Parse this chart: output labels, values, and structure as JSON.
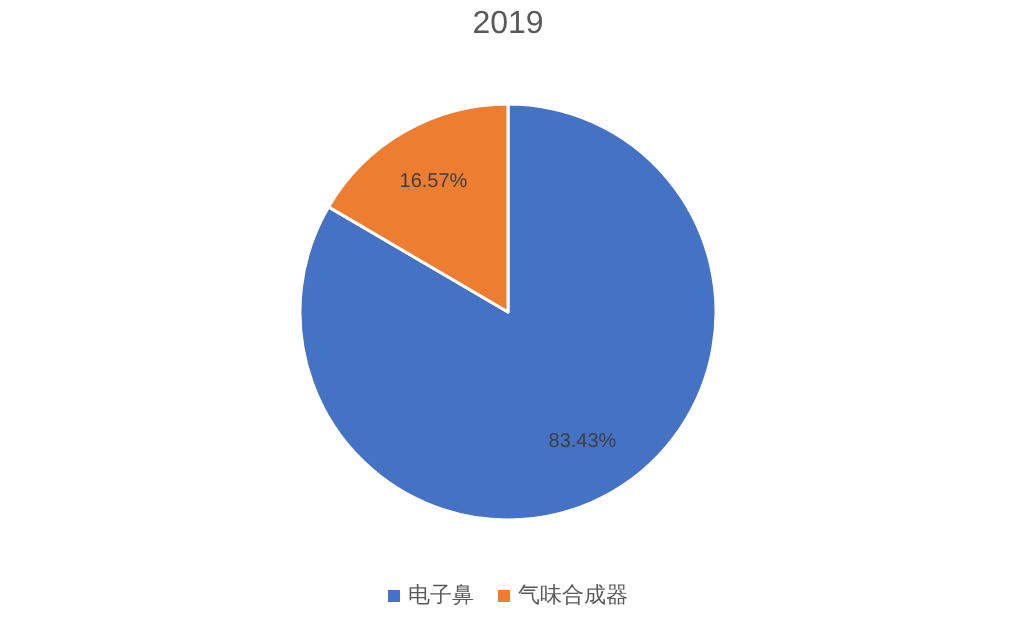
{
  "chart_data": {
    "type": "pie",
    "title": "2019",
    "categories": [
      "电子鼻",
      "气味合成器"
    ],
    "values": [
      83.43,
      16.57
    ],
    "colors": [
      "#4472c4",
      "#ed7d31"
    ],
    "value_labels": [
      "83.43%",
      "16.57%"
    ],
    "legend": "bottom"
  }
}
